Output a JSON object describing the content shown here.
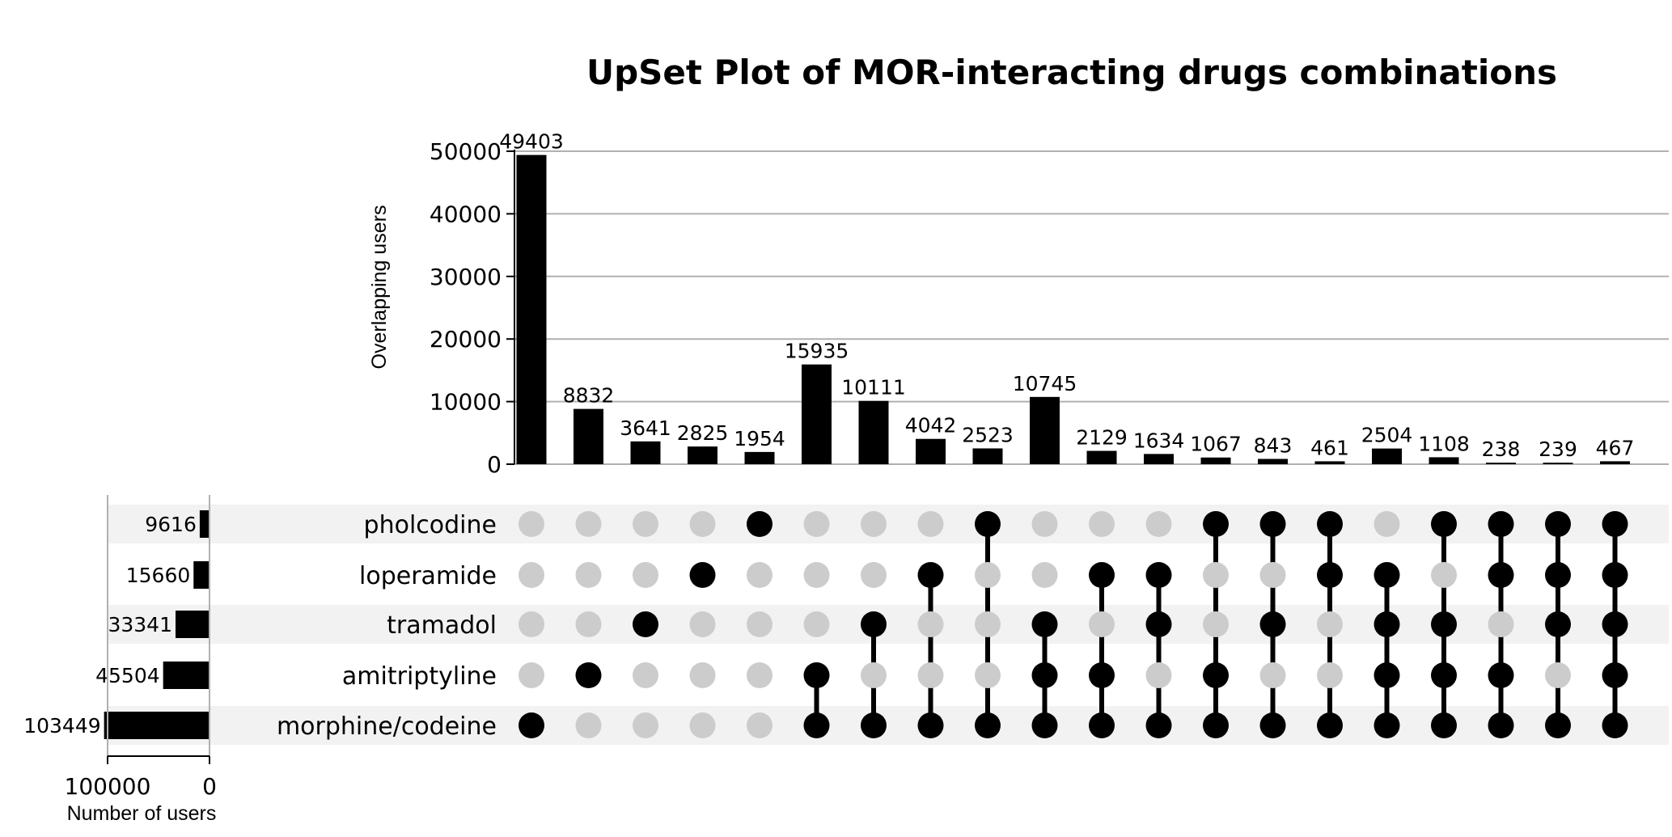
{
  "chart_data": {
    "type": "upset",
    "title": "UpSet Plot of MOR-interacting drugs combinations",
    "ylabel": "Overlapping users",
    "set_size_xlabel": "Number of users",
    "intersection_axis": {
      "ylim": [
        0,
        50000
      ],
      "ticks": [
        0,
        10000,
        20000,
        30000,
        40000,
        50000
      ],
      "grid": true
    },
    "set_size_axis": {
      "ticks": [
        100000,
        0
      ],
      "xlim": [
        100000,
        0
      ]
    },
    "sets": [
      {
        "name": "pholcodine",
        "size": 9616
      },
      {
        "name": "loperamide",
        "size": 15660
      },
      {
        "name": "tramadol",
        "size": 33341
      },
      {
        "name": "amitriptyline",
        "size": 45504
      },
      {
        "name": "morphine/codeine",
        "size": 103449
      }
    ],
    "intersections": [
      {
        "sets": [
          "morphine/codeine"
        ],
        "value": 49403
      },
      {
        "sets": [
          "amitriptyline"
        ],
        "value": 8832
      },
      {
        "sets": [
          "tramadol"
        ],
        "value": 3641
      },
      {
        "sets": [
          "loperamide"
        ],
        "value": 2825
      },
      {
        "sets": [
          "pholcodine"
        ],
        "value": 1954
      },
      {
        "sets": [
          "amitriptyline",
          "morphine/codeine"
        ],
        "value": 15935
      },
      {
        "sets": [
          "tramadol",
          "morphine/codeine"
        ],
        "value": 10111
      },
      {
        "sets": [
          "loperamide",
          "morphine/codeine"
        ],
        "value": 4042
      },
      {
        "sets": [
          "pholcodine",
          "morphine/codeine"
        ],
        "value": 2523
      },
      {
        "sets": [
          "tramadol",
          "amitriptyline",
          "morphine/codeine"
        ],
        "value": 10745
      },
      {
        "sets": [
          "loperamide",
          "amitriptyline",
          "morphine/codeine"
        ],
        "value": 2129
      },
      {
        "sets": [
          "loperamide",
          "tramadol",
          "morphine/codeine"
        ],
        "value": 1634
      },
      {
        "sets": [
          "pholcodine",
          "amitriptyline",
          "morphine/codeine"
        ],
        "value": 1067
      },
      {
        "sets": [
          "pholcodine",
          "tramadol",
          "morphine/codeine"
        ],
        "value": 843
      },
      {
        "sets": [
          "pholcodine",
          "loperamide",
          "morphine/codeine"
        ],
        "value": 461
      },
      {
        "sets": [
          "loperamide",
          "tramadol",
          "amitriptyline",
          "morphine/codeine"
        ],
        "value": 2504
      },
      {
        "sets": [
          "pholcodine",
          "tramadol",
          "amitriptyline",
          "morphine/codeine"
        ],
        "value": 1108
      },
      {
        "sets": [
          "pholcodine",
          "loperamide",
          "amitriptyline",
          "morphine/codeine"
        ],
        "value": 238
      },
      {
        "sets": [
          "pholcodine",
          "loperamide",
          "tramadol",
          "morphine/codeine"
        ],
        "value": 239
      },
      {
        "sets": [
          "pholcodine",
          "loperamide",
          "tramadol",
          "amitriptyline",
          "morphine/codeine"
        ],
        "value": 467
      }
    ],
    "colors": {
      "bar": "#000000",
      "dot_active": "#000000",
      "dot_inactive": "#cccccc",
      "stripe": "#f2f2f2",
      "grid": "#b0b0b0"
    }
  }
}
